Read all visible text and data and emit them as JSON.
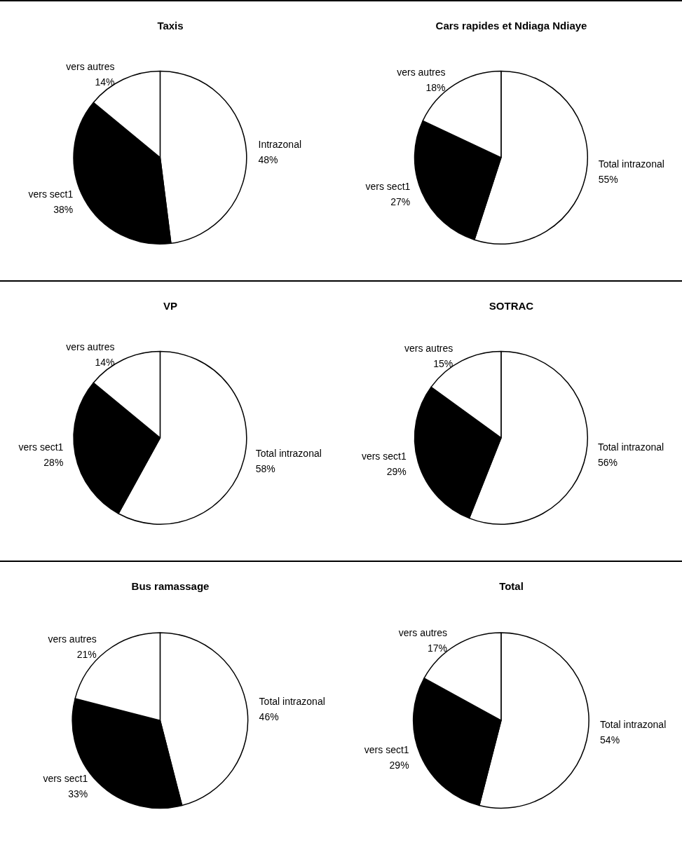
{
  "chart_data": [
    {
      "type": "pie",
      "title": "Taxis",
      "categories": [
        "Intrazonal",
        "vers sect1",
        "vers autres"
      ],
      "values": [
        48,
        38,
        14
      ],
      "value_labels": [
        "48%",
        "38%",
        "14%"
      ],
      "colors": [
        "#ffffff",
        "#000000",
        "#ffffff"
      ],
      "legend": false
    },
    {
      "type": "pie",
      "title": "Cars rapides et Ndiaga Ndiaye",
      "categories": [
        "Total intrazonal",
        "vers sect1",
        "vers autres"
      ],
      "values": [
        55,
        27,
        18
      ],
      "value_labels": [
        "55%",
        "27%",
        "18%"
      ],
      "colors": [
        "#ffffff",
        "#000000",
        "#ffffff"
      ],
      "legend": false
    },
    {
      "type": "pie",
      "title": "VP",
      "categories": [
        "Total intrazonal",
        "vers sect1",
        "vers autres"
      ],
      "values": [
        58,
        28,
        14
      ],
      "value_labels": [
        "58%",
        "28%",
        "14%"
      ],
      "colors": [
        "#ffffff",
        "#000000",
        "#ffffff"
      ],
      "legend": false
    },
    {
      "type": "pie",
      "title": "SOTRAC",
      "categories": [
        "Total intrazonal",
        "vers sect1",
        "vers autres"
      ],
      "values": [
        56,
        29,
        15
      ],
      "value_labels": [
        "56%",
        "29%",
        "15%"
      ],
      "colors": [
        "#ffffff",
        "#000000",
        "#ffffff"
      ],
      "legend": false
    },
    {
      "type": "pie",
      "title": "Bus ramassage",
      "categories": [
        "Total intrazonal",
        "vers sect1",
        "vers autres"
      ],
      "values": [
        46,
        33,
        21
      ],
      "value_labels": [
        "46%",
        "33%",
        "21%"
      ],
      "colors": [
        "#ffffff",
        "#000000",
        "#ffffff"
      ],
      "legend": false
    },
    {
      "type": "pie",
      "title": "Total",
      "categories": [
        "Total intrazonal",
        "vers sect1",
        "vers autres"
      ],
      "values": [
        54,
        29,
        17
      ],
      "value_labels": [
        "54%",
        "29%",
        "17%"
      ],
      "colors": [
        "#ffffff",
        "#000000",
        "#ffffff"
      ],
      "legend": false
    }
  ]
}
